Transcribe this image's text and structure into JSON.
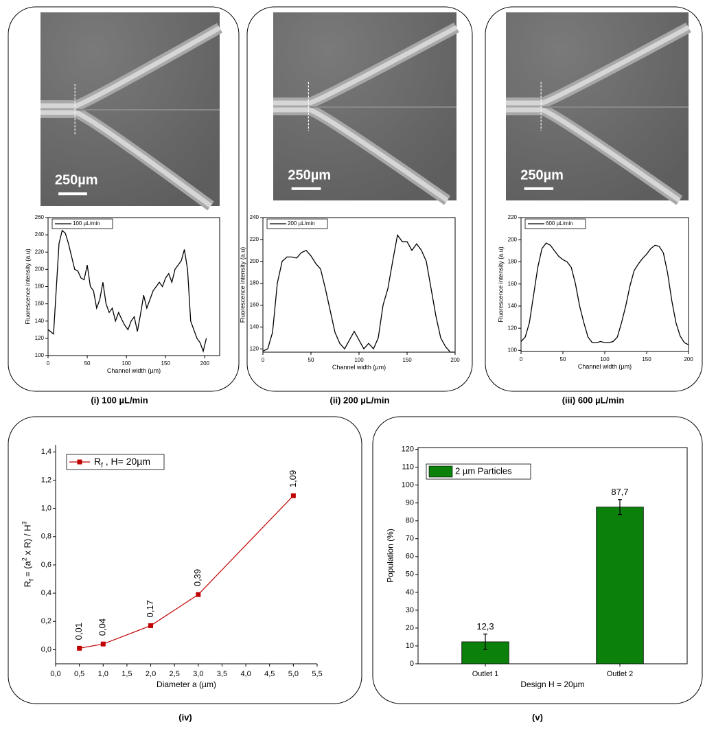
{
  "chart_data": [
    {
      "type": "line",
      "panel_label": "(i) 100 µL/min",
      "image": {
        "scale_bar": "250µm"
      },
      "xlabel": "Channel width (µm)",
      "ylabel": "Fluorescence intensity (a.u)",
      "xlim": [
        0,
        219
      ],
      "xticks": [
        0,
        50,
        100,
        150,
        200
      ],
      "ylim": [
        100,
        260
      ],
      "yticks": [
        100,
        120,
        140,
        160,
        180,
        200,
        220,
        240,
        260
      ],
      "x": [
        0,
        3,
        7,
        10,
        14,
        18,
        22,
        26,
        30,
        34,
        38,
        42,
        46,
        50,
        54,
        58,
        62,
        66,
        70,
        74,
        78,
        82,
        86,
        90,
        94,
        98,
        102,
        106,
        110,
        114,
        118,
        122,
        126,
        130,
        134,
        138,
        142,
        146,
        150,
        154,
        158,
        162,
        166,
        170,
        174,
        178,
        182,
        186,
        190,
        194,
        198,
        202
      ],
      "series": [
        {
          "name": "100 µL/min",
          "color": "#000000",
          "values": [
            130,
            128,
            125,
            170,
            230,
            245,
            242,
            230,
            215,
            200,
            198,
            190,
            188,
            205,
            180,
            175,
            155,
            165,
            185,
            160,
            150,
            155,
            140,
            150,
            142,
            135,
            130,
            140,
            145,
            128,
            148,
            170,
            155,
            165,
            175,
            180,
            185,
            180,
            190,
            195,
            185,
            200,
            205,
            210,
            223,
            200,
            140,
            130,
            120,
            115,
            105,
            120
          ]
        }
      ]
    },
    {
      "type": "line",
      "panel_label": "(ii) 200 µL/min",
      "image": {
        "scale_bar": "250µm"
      },
      "xlabel": "Channel width (µm)",
      "ylabel": "Fluorescence intensity (a.u)",
      "xlim": [
        0,
        200
      ],
      "xticks": [
        0,
        50,
        100,
        150,
        200
      ],
      "ylim": [
        117,
        240
      ],
      "yticks": [
        120,
        140,
        160,
        180,
        200,
        220,
        240
      ],
      "x": [
        0,
        5,
        10,
        15,
        20,
        25,
        30,
        35,
        40,
        45,
        50,
        55,
        60,
        65,
        70,
        75,
        80,
        85,
        90,
        95,
        100,
        105,
        110,
        115,
        120,
        125,
        130,
        135,
        140,
        145,
        150,
        155,
        160,
        165,
        170,
        175,
        180,
        185,
        190,
        195,
        200
      ],
      "series": [
        {
          "name": "200 µL/min",
          "color": "#000000",
          "values": [
            118,
            120,
            135,
            180,
            200,
            204,
            204,
            203,
            208,
            210,
            205,
            198,
            193,
            175,
            155,
            135,
            125,
            120,
            128,
            136,
            128,
            120,
            125,
            120,
            130,
            160,
            175,
            200,
            224,
            218,
            218,
            210,
            216,
            210,
            200,
            175,
            150,
            130,
            122,
            117,
            117
          ]
        }
      ]
    },
    {
      "type": "line",
      "panel_label": "(iii) 600 µL/min",
      "image": {
        "scale_bar": "250µm"
      },
      "xlabel": "Channel width (µm)",
      "ylabel": "Fluorescence intensity (a.u)",
      "xlim": [
        0,
        200
      ],
      "xticks": [
        0,
        50,
        100,
        150,
        200
      ],
      "ylim": [
        99,
        220
      ],
      "yticks": [
        100,
        120,
        140,
        160,
        180,
        200,
        220
      ],
      "x": [
        0,
        5,
        10,
        15,
        20,
        25,
        30,
        35,
        40,
        45,
        50,
        55,
        60,
        65,
        70,
        75,
        80,
        85,
        90,
        95,
        100,
        105,
        110,
        115,
        120,
        125,
        130,
        135,
        140,
        145,
        150,
        155,
        160,
        165,
        170,
        175,
        180,
        185,
        190,
        195,
        200
      ],
      "series": [
        {
          "name": "600 µL/min",
          "color": "#000000",
          "values": [
            108,
            112,
            125,
            150,
            175,
            192,
            197,
            195,
            190,
            185,
            182,
            180,
            175,
            160,
            140,
            125,
            112,
            107,
            107,
            108,
            107,
            107,
            108,
            112,
            125,
            140,
            158,
            172,
            178,
            183,
            187,
            192,
            195,
            194,
            188,
            170,
            145,
            125,
            113,
            107,
            105
          ]
        }
      ]
    },
    {
      "type": "line",
      "markers": true,
      "panel_label": "(iv)",
      "xlabel": "Diameter a (µm)",
      "ylabel": [
        {
          "text": "R"
        },
        {
          "text": "f",
          "script": "sub"
        },
        {
          "text": " = (a"
        },
        {
          "text": "2",
          "script": "sup"
        },
        {
          "text": " x R) / H"
        },
        {
          "text": "3",
          "script": "sup"
        }
      ],
      "xlim": [
        0,
        5.5
      ],
      "xticks": [
        {
          "value": 0,
          "label": "0,0"
        },
        {
          "value": 0.5,
          "label": "0,5"
        },
        {
          "value": 1,
          "label": "1,0"
        },
        {
          "value": 1.5,
          "label": "1,5"
        },
        {
          "value": 2,
          "label": "2,0"
        },
        {
          "value": 2.5,
          "label": "2,5"
        },
        {
          "value": 3,
          "label": "3,0"
        },
        {
          "value": 3.5,
          "label": "3,5"
        },
        {
          "value": 4,
          "label": "4,0"
        },
        {
          "value": 4.5,
          "label": "4,5"
        },
        {
          "value": 5,
          "label": "5,0"
        },
        {
          "value": 5.5,
          "label": "5,5"
        }
      ],
      "ylim": [
        -0.1,
        1.45
      ],
      "yticks": [
        {
          "value": 0,
          "label": "0,0"
        },
        {
          "value": 0.2,
          "label": "0,2"
        },
        {
          "value": 0.4,
          "label": "0,4"
        },
        {
          "value": 0.6,
          "label": "0,6"
        },
        {
          "value": 0.8,
          "label": "0,8"
        },
        {
          "value": 1,
          "label": "1,0"
        },
        {
          "value": 1.2,
          "label": "1,2"
        },
        {
          "value": 1.4,
          "label": "1,4"
        }
      ],
      "x": [
        0.5,
        1,
        2,
        3,
        5
      ],
      "series": [
        {
          "name": [
            {
              "text": "R"
            },
            {
              "text": "f",
              "script": "sub"
            },
            {
              "text": " , H= 20µm"
            }
          ],
          "color": "#c00000",
          "values": [
            0.01,
            0.04,
            0.17,
            0.39,
            1.09
          ],
          "value_labels": [
            "0,01",
            "0,04",
            "0,17",
            "0,39",
            "1,09"
          ]
        }
      ]
    },
    {
      "type": "bar",
      "panel_label": "(v)",
      "xlabel": "Design H = 20µm",
      "ylabel": "Population (%)",
      "ylim": [
        0,
        121
      ],
      "yticks": [
        0,
        10,
        20,
        30,
        40,
        50,
        60,
        70,
        80,
        90,
        100,
        110,
        120
      ],
      "categories": [
        "Outlet 1",
        "Outlet 2"
      ],
      "series": [
        {
          "name": "2 µm Particles",
          "color": "#0b800b",
          "values": [
            12.3,
            87.7
          ],
          "errors": [
            4.3,
            4.2
          ],
          "value_labels": [
            "12,3",
            "87,7"
          ]
        }
      ]
    }
  ]
}
